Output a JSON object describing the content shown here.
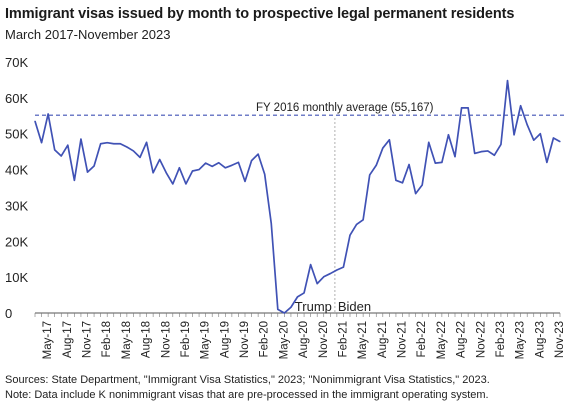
{
  "title": "Immigrant visas issued by month to prospective legal permanent residents",
  "subtitle": "March 2017-November 2023",
  "footer": {
    "source": "Sources: State Department, \"Immigrant Visa Statistics,\" 2023; \"Nonimmigrant Visa Statistics,\" 2023.",
    "note": "Note: Data include K nonimmigrant visas that are pre-processed in the immigrant operating system."
  },
  "chart_data": {
    "type": "line",
    "ylim": [
      0,
      70000
    ],
    "y_ticks": [
      0,
      10000,
      20000,
      30000,
      40000,
      50000,
      60000,
      70000
    ],
    "y_tick_labels": [
      "0",
      "10K",
      "20K",
      "30K",
      "40K",
      "50K",
      "60K",
      "70K"
    ],
    "x_tick_labels": [
      "May-17",
      "Aug-17",
      "Nov-17",
      "Feb-18",
      "May-18",
      "Aug-18",
      "Nov-18",
      "Feb-19",
      "May-19",
      "Aug-19",
      "Nov-19",
      "Feb-20",
      "May-20",
      "Aug-20",
      "Nov-20",
      "Feb-21",
      "May-21",
      "Aug-21",
      "Nov-21",
      "Feb-22",
      "May-22",
      "Aug-22",
      "Nov-22",
      "Feb-23",
      "May-23",
      "Aug-23",
      "Nov-23"
    ],
    "x": [
      "Mar-17",
      "Apr-17",
      "May-17",
      "Jun-17",
      "Jul-17",
      "Aug-17",
      "Sep-17",
      "Oct-17",
      "Nov-17",
      "Dec-17",
      "Jan-18",
      "Feb-18",
      "Mar-18",
      "Apr-18",
      "May-18",
      "Jun-18",
      "Jul-18",
      "Aug-18",
      "Sep-18",
      "Oct-18",
      "Nov-18",
      "Dec-18",
      "Jan-19",
      "Feb-19",
      "Mar-19",
      "Apr-19",
      "May-19",
      "Jun-19",
      "Jul-19",
      "Aug-19",
      "Sep-19",
      "Oct-19",
      "Nov-19",
      "Dec-19",
      "Jan-20",
      "Feb-20",
      "Mar-20",
      "Apr-20",
      "May-20",
      "Jun-20",
      "Jul-20",
      "Aug-20",
      "Sep-20",
      "Oct-20",
      "Nov-20",
      "Dec-20",
      "Jan-21",
      "Feb-21",
      "Mar-21",
      "Apr-21",
      "May-21",
      "Jun-21",
      "Jul-21",
      "Aug-21",
      "Sep-21",
      "Oct-21",
      "Nov-21",
      "Dec-21",
      "Jan-22",
      "Feb-22",
      "Mar-22",
      "Apr-22",
      "May-22",
      "Jun-22",
      "Jul-22",
      "Aug-22",
      "Sep-22",
      "Oct-22",
      "Nov-22",
      "Dec-22",
      "Jan-23",
      "Feb-23",
      "Mar-23",
      "Apr-23",
      "May-23",
      "Jun-23",
      "Jul-23",
      "Aug-23",
      "Sep-23",
      "Oct-23",
      "Nov-23"
    ],
    "series": [
      {
        "color": "#4052b5",
        "values": [
          53500,
          47500,
          55500,
          45500,
          43800,
          46800,
          37000,
          48500,
          39300,
          41000,
          47200,
          47500,
          47200,
          47200,
          46300,
          45200,
          43400,
          47600,
          39100,
          42800,
          39100,
          36000,
          40500,
          36000,
          39600,
          40000,
          41800,
          40900,
          41900,
          40500,
          41200,
          42000,
          36700,
          42500,
          44300,
          38700,
          25000,
          1000,
          0,
          1600,
          4500,
          5600,
          13500,
          8200,
          10100,
          11000,
          12000,
          12800,
          21700,
          24700,
          26000,
          38500,
          41200,
          46000,
          48300,
          37000,
          36300,
          41400,
          33300,
          35700,
          47600,
          41800,
          42000,
          49700,
          43600,
          57200,
          57200,
          44500,
          45000,
          45200,
          44000,
          47000,
          64800,
          49700,
          57800,
          52500,
          48200,
          50000,
          42000,
          48800,
          47800
        ]
      }
    ],
    "reference_line": {
      "value": 55167,
      "label": "FY 2016 monthly average (55,167)",
      "color": "#4052b5"
    },
    "divider": {
      "at": "Jan-21",
      "left_label": "Trump",
      "right_label": "Biden",
      "color": "#b0b0b0"
    },
    "grid": false
  }
}
